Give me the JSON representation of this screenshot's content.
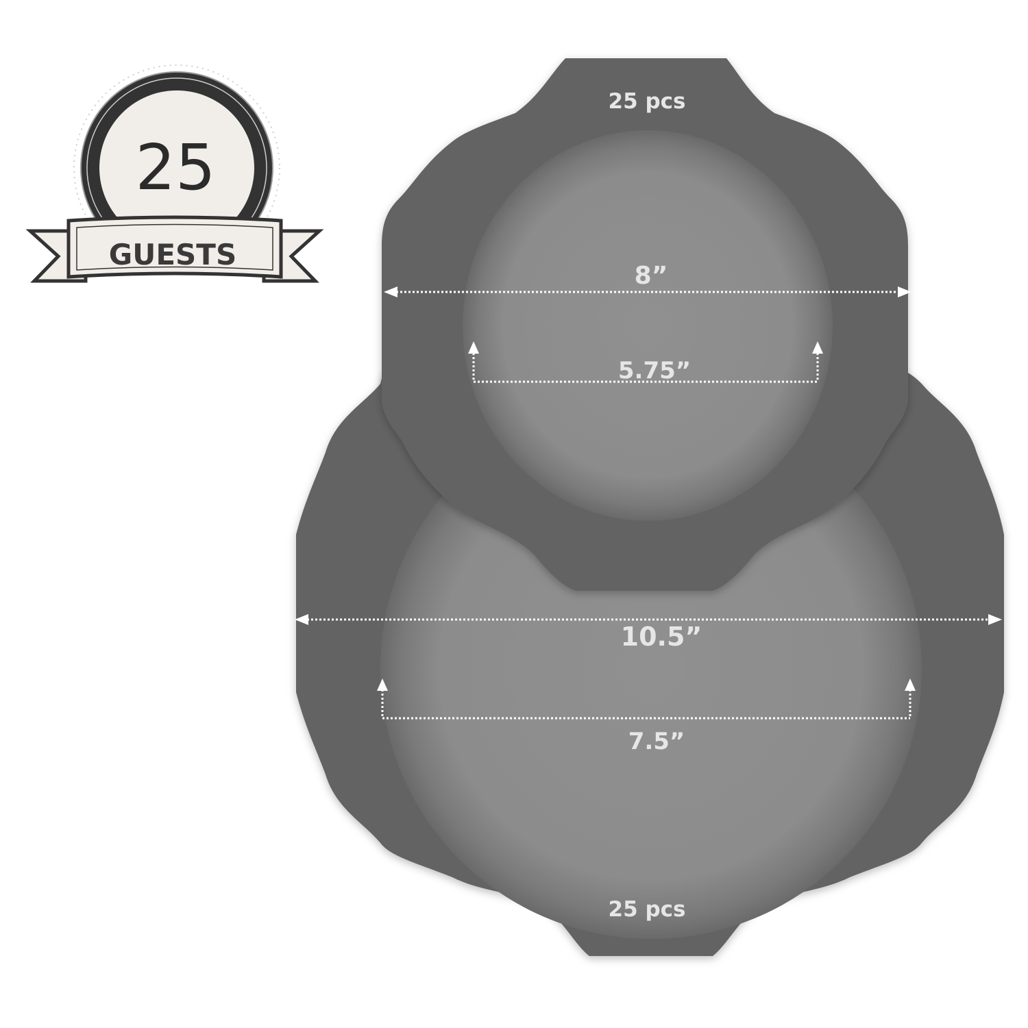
{
  "badge": {
    "number": "25",
    "ribbon_text": "GUESTS"
  },
  "small_plate": {
    "pieces_label": "25 pcs",
    "outer_diameter_label": "8”",
    "inner_diameter_label": "5.75”"
  },
  "large_plate": {
    "pieces_label": "25 pcs",
    "outer_diameter_label": "10.5”",
    "inner_diameter_label": "7.5”"
  },
  "colors": {
    "plate_rim": "#636363",
    "plate_well": "#8d8d8d",
    "dimension_line": "#ffffff",
    "label_text": "#e6e6e6",
    "badge_dark": "#333333",
    "badge_light": "#f1eee9"
  }
}
